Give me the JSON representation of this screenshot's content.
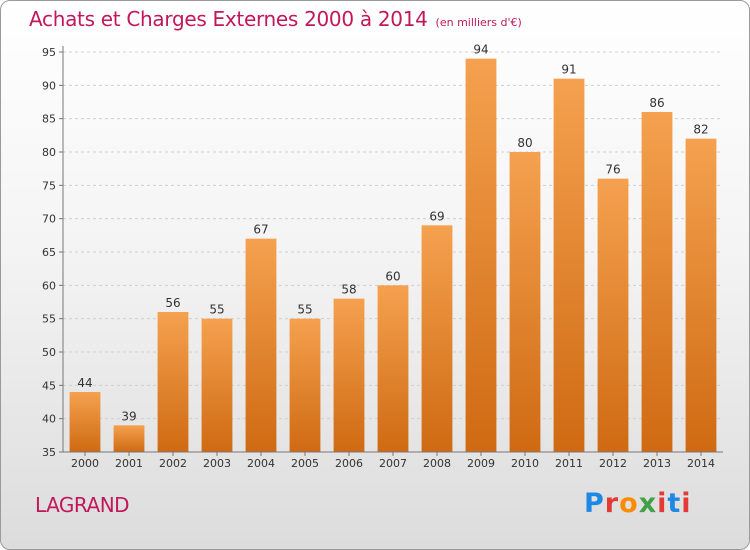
{
  "header": {
    "title": "Achats et Charges Externes 2000 à 2014",
    "unit_note": "(en milliers d'€)"
  },
  "place_name": "LAGRAND",
  "logo": {
    "text": "Proxiti",
    "letter_colors": [
      "#1e88e5",
      "#e53935",
      "#fb8c00",
      "#43a047",
      "#e53935",
      "#1e88e5",
      "#e53935"
    ]
  },
  "chart_data": {
    "type": "bar",
    "categories": [
      "2000",
      "2001",
      "2002",
      "2003",
      "2004",
      "2005",
      "2006",
      "2007",
      "2008",
      "2009",
      "2010",
      "2011",
      "2012",
      "2013",
      "2014"
    ],
    "values": [
      44,
      39,
      56,
      55,
      67,
      55,
      58,
      60,
      69,
      94,
      80,
      91,
      76,
      86,
      82
    ],
    "ylim": [
      35,
      95
    ],
    "yticks": [
      35,
      40,
      45,
      50,
      55,
      60,
      65,
      70,
      75,
      80,
      85,
      90,
      95
    ],
    "grid": true,
    "colors": {
      "bar_top": "#f5a14f",
      "bar_bottom": "#cf6a12",
      "grid": "#cfcfcf"
    }
  }
}
